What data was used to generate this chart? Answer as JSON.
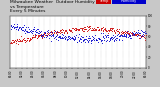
{
  "background_color": "#c8c8c8",
  "plot_bg_color": "#ffffff",
  "dot_color_humidity": "#0000cc",
  "dot_color_temp": "#cc0000",
  "legend_humidity_color": "#0000cc",
  "legend_temp_color": "#cc0000",
  "grid_color": "#aaaaaa",
  "tick_fontsize": 2.0,
  "title_fontsize": 3.2,
  "xlim": [
    0,
    288
  ],
  "ylim": [
    0,
    100
  ],
  "right_ylim": [
    -20,
    100
  ]
}
